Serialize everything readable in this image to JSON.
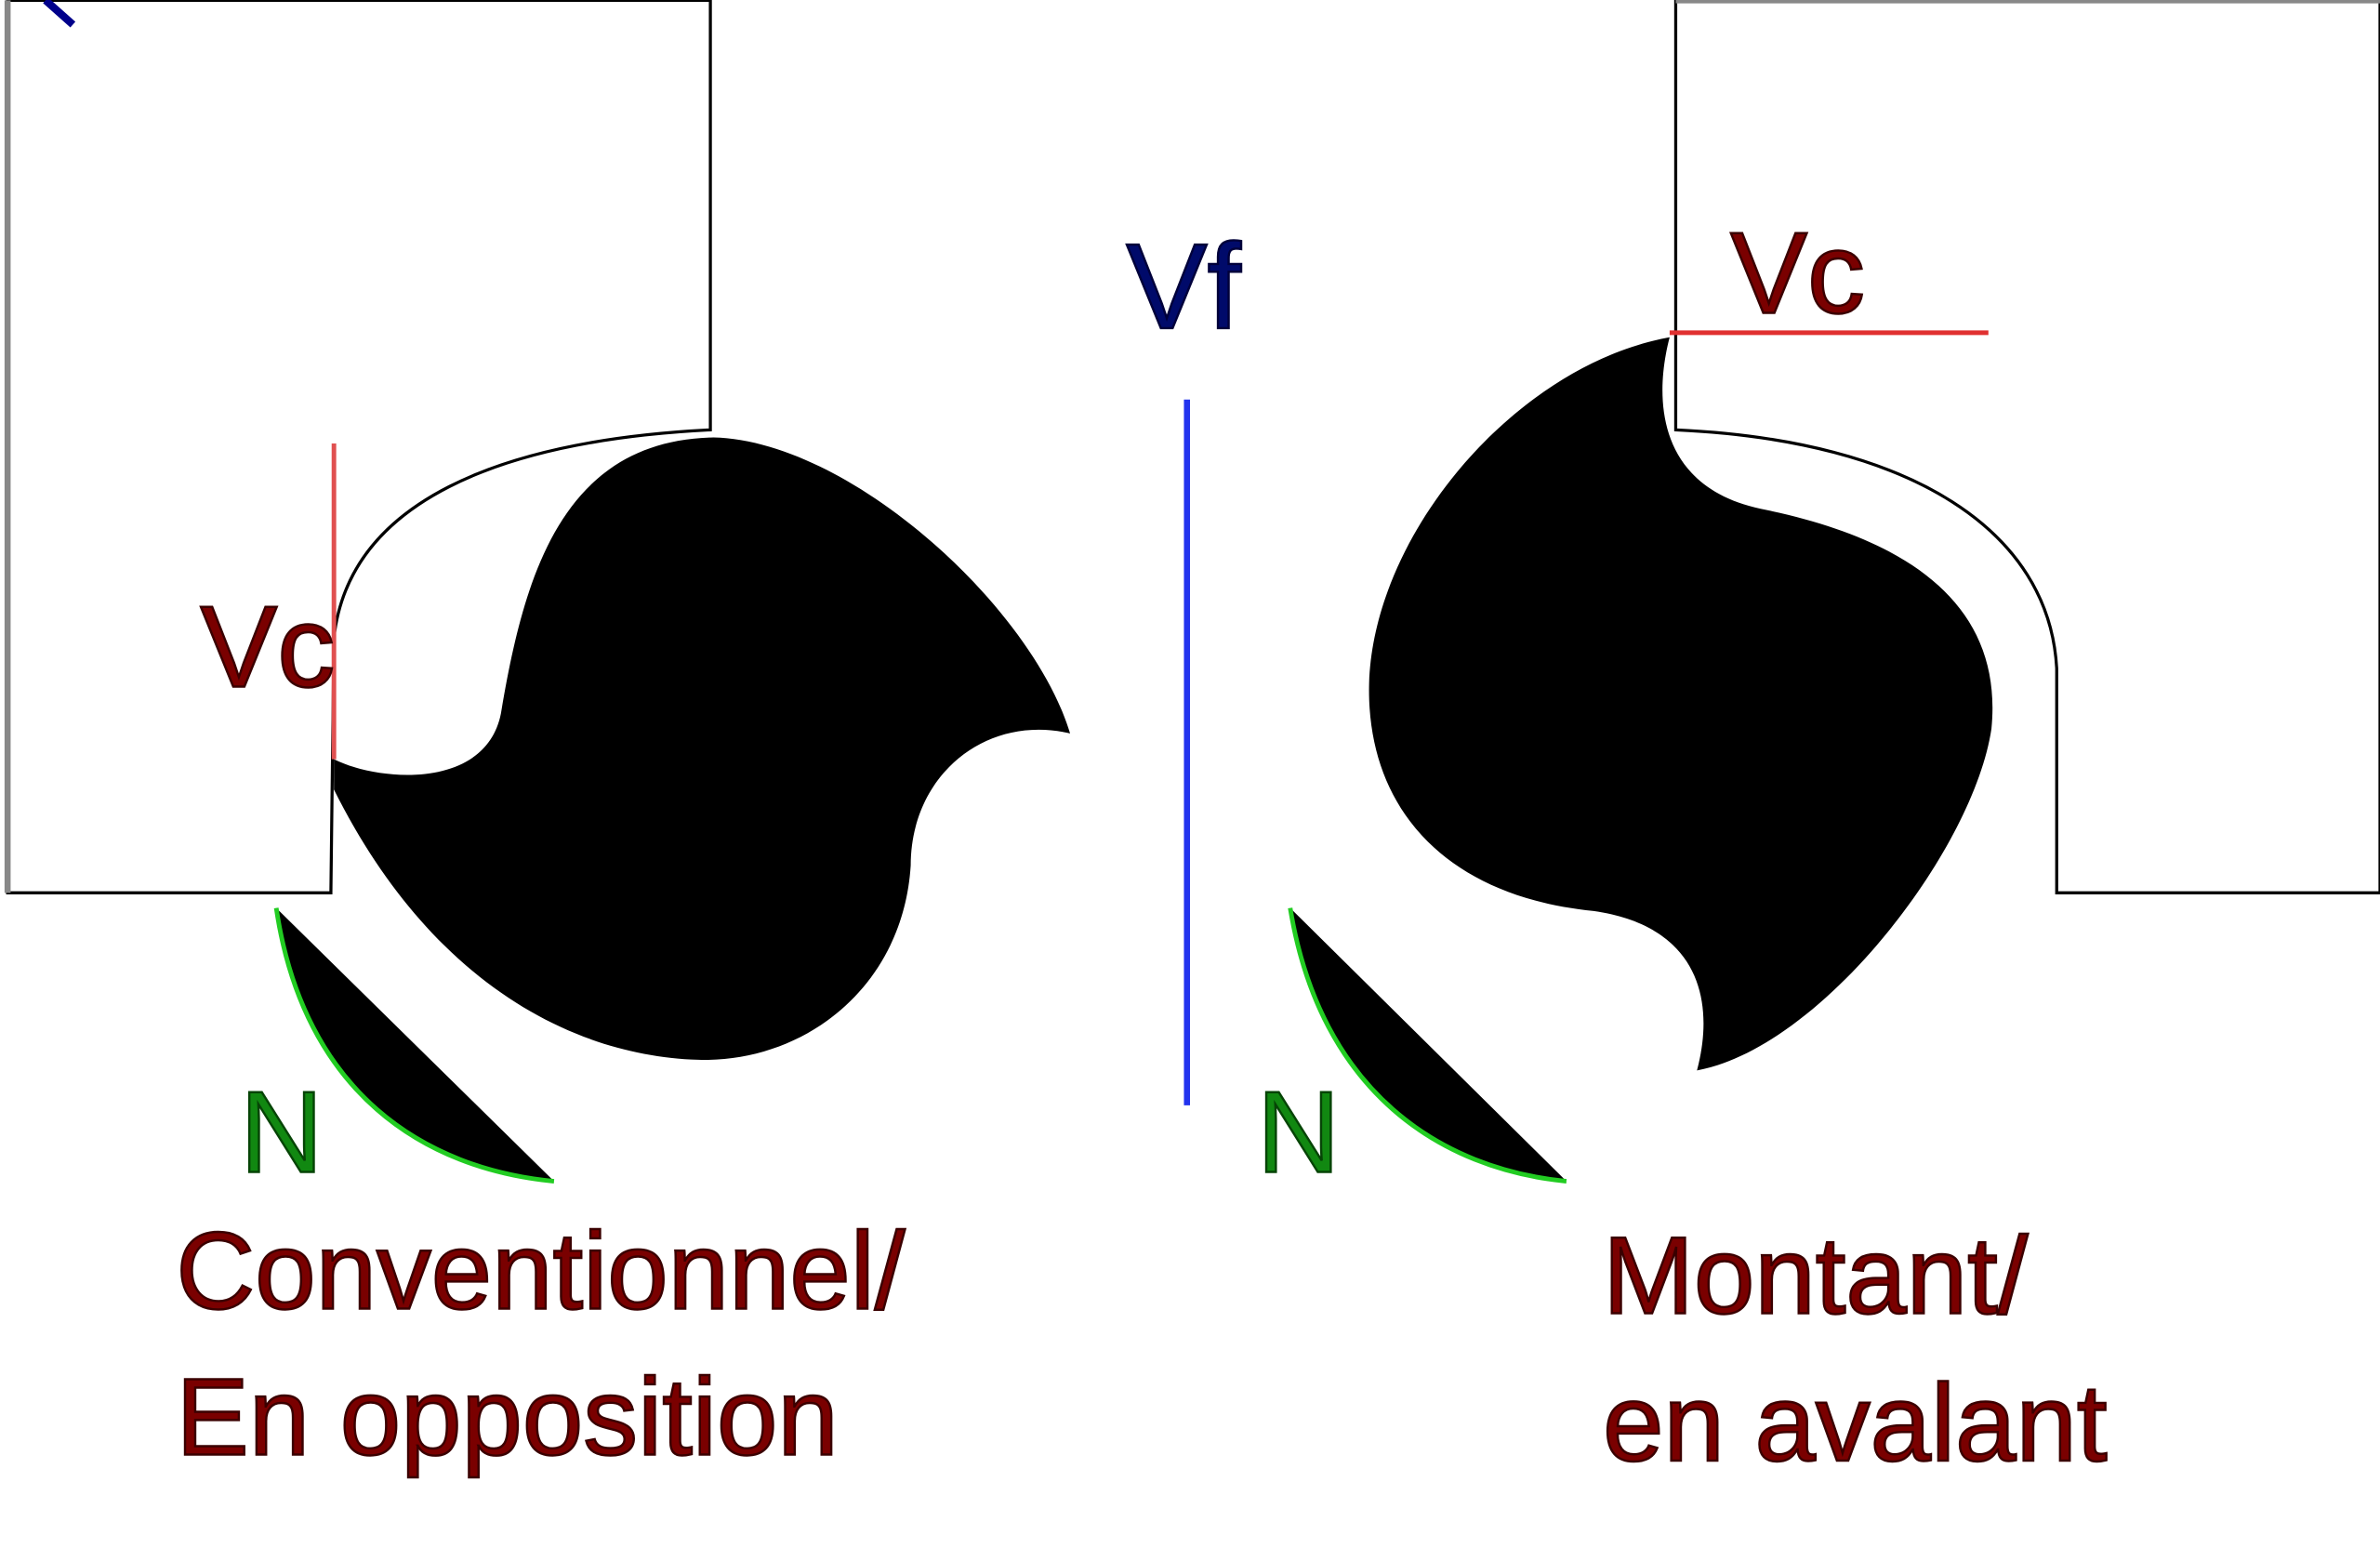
{
  "left": {
    "vc_label": "Vc",
    "n_label": "N",
    "caption": [
      "Conventionnel/",
      "En opposition"
    ]
  },
  "center": {
    "vf_label": "Vf"
  },
  "right": {
    "vc_label": "Vc",
    "n_label": "N",
    "caption": [
      "Montant/",
      "en avalant"
    ]
  }
}
